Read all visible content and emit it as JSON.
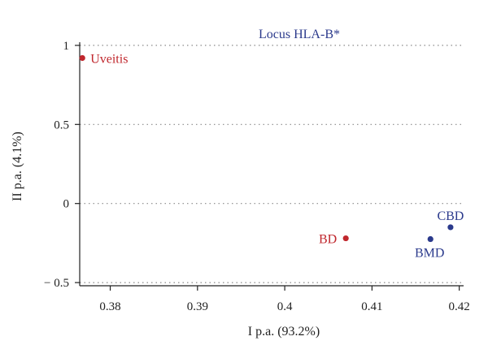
{
  "chart_data": {
    "type": "scatter",
    "title": "Locus HLA-B*",
    "xlabel": "I p.a. (93.2%)",
    "ylabel": "II p.a. (4.1%)",
    "xlim": [
      0.3765,
      0.4205
    ],
    "ylim": [
      -0.52,
      1.02
    ],
    "xticks": [
      0.38,
      0.39,
      0.4,
      0.41,
      0.42
    ],
    "xtick_labels": [
      "0.38",
      "0.39",
      "0.4",
      "0.41",
      "0.42"
    ],
    "yticks": [
      1,
      0.5,
      0,
      -0.5
    ],
    "ytick_labels": [
      "1",
      "0.5",
      "0",
      "− 0.5"
    ],
    "grid": "horizontal dotted at y ticks",
    "points": [
      {
        "label": "Uveitis",
        "x": 0.3768,
        "y": 0.92,
        "color": "#c0272d",
        "label_side": "right"
      },
      {
        "label": "BD",
        "x": 0.407,
        "y": -0.22,
        "color": "#c0272d",
        "label_side": "left"
      },
      {
        "label": "BMD",
        "x": 0.4167,
        "y": -0.225,
        "color": "#2b3a8c",
        "label_side": "below"
      },
      {
        "label": "CBD",
        "x": 0.419,
        "y": -0.15,
        "color": "#2b3a8c",
        "label_side": "above"
      }
    ]
  }
}
